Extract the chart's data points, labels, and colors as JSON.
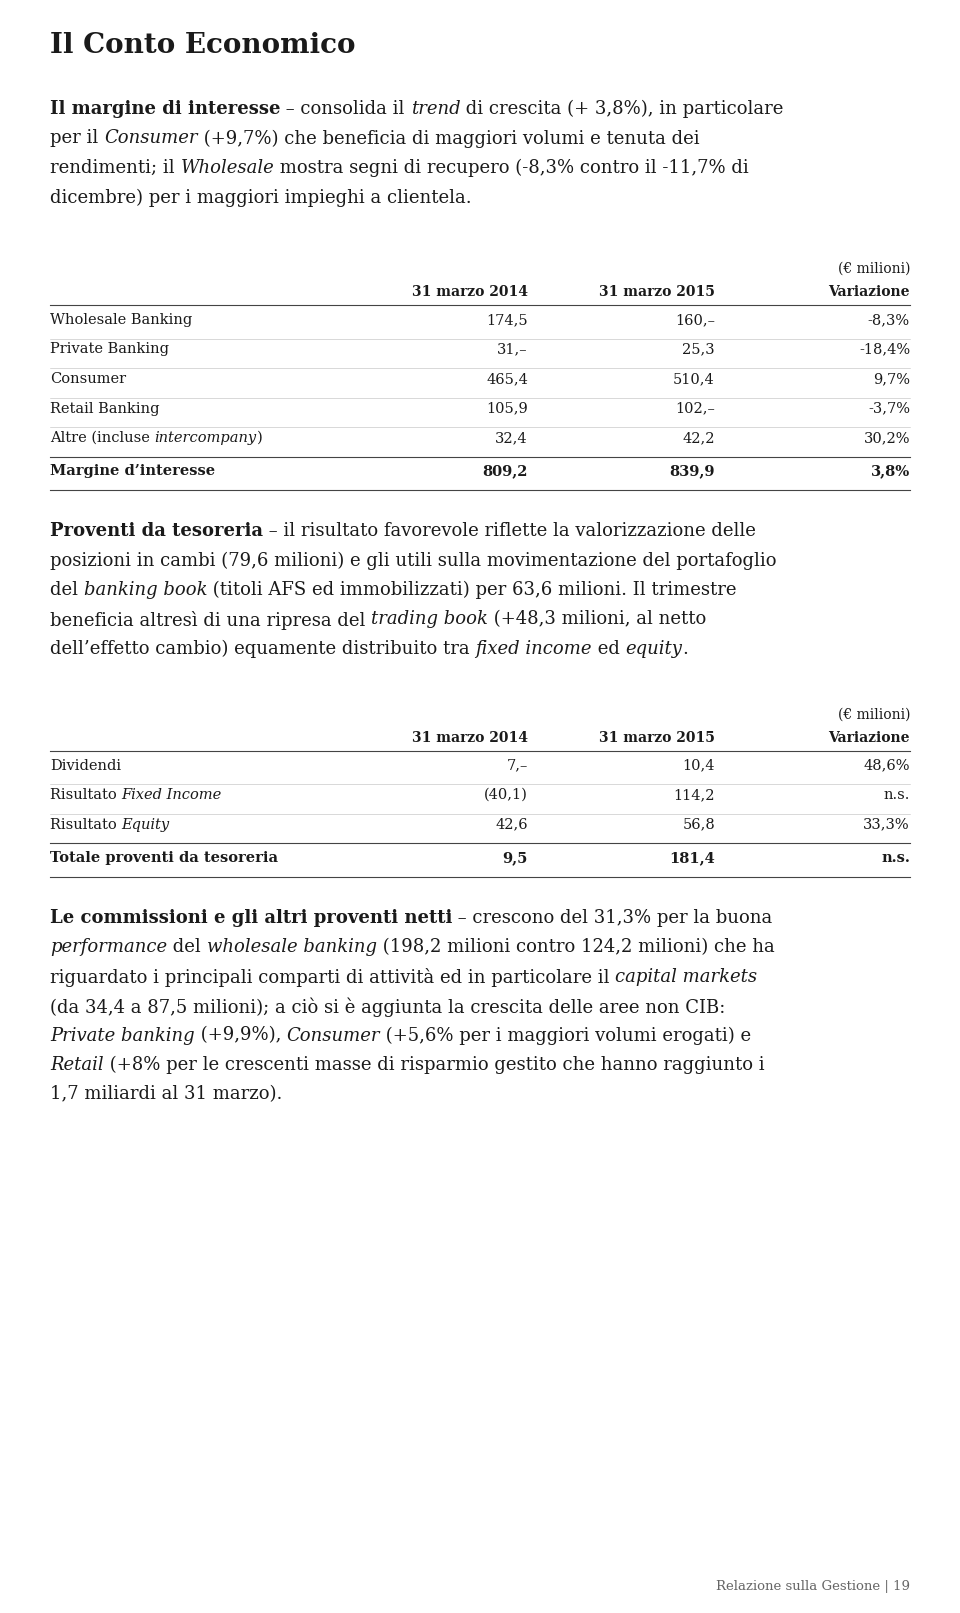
{
  "title": "Il Conto Economico",
  "bg_color": "#ffffff",
  "text_color": "#1a1a1a",
  "table1_header_label": "(€ milioni)",
  "table1_col1": "31 marzo 2014",
  "table1_col2": "31 marzo 2015",
  "table1_col3": "Variazione",
  "table1_rows": [
    [
      "Wholesale Banking",
      "174,5",
      "160,–",
      "-8,3%"
    ],
    [
      "Private Banking",
      "31,–",
      "25,3",
      "-18,4%"
    ],
    [
      "Consumer",
      "465,4",
      "510,4",
      "9,7%"
    ],
    [
      "Retail Banking",
      "105,9",
      "102,–",
      "-3,7%"
    ],
    [
      "Altre (incluse intercompany)",
      "32,4",
      "42,2",
      "30,2%"
    ]
  ],
  "table1_total_row": [
    "Margine d’interesse",
    "809,2",
    "839,9",
    "3,8%"
  ],
  "table2_header_label": "(€ milioni)",
  "table2_col1": "31 marzo 2014",
  "table2_col2": "31 marzo 2015",
  "table2_col3": "Variazione",
  "table2_rows": [
    [
      "Dividendi",
      "7,–",
      "10,4",
      "48,6%"
    ],
    [
      "Risultato Fixed Income",
      "(40,1)",
      "114,2",
      "n.s."
    ],
    [
      "Risultato Equity",
      "42,6",
      "56,8",
      "33,3%"
    ]
  ],
  "table2_total_row": [
    "Totale proventi da tesoreria",
    "9,5",
    "181,4",
    "n.s."
  ],
  "footer_text": "Relazione sulla Gestione | 19",
  "font_family": "serif",
  "fontsize_title": 20,
  "fontsize_body": 13,
  "fontsize_table_header": 10,
  "fontsize_table": 10.5
}
